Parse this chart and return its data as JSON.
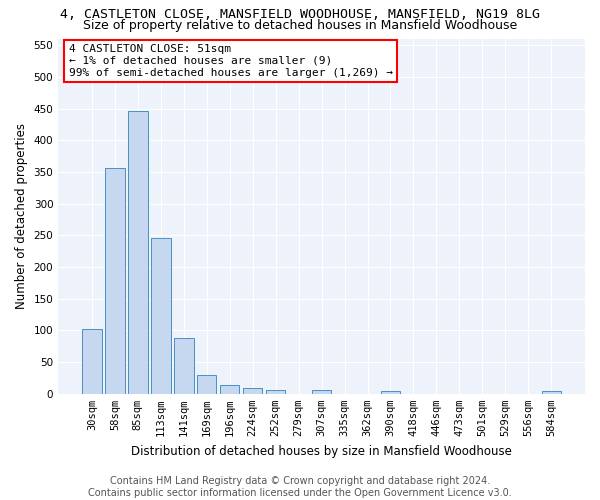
{
  "title": "4, CASTLETON CLOSE, MANSFIELD WOODHOUSE, MANSFIELD, NG19 8LG",
  "subtitle": "Size of property relative to detached houses in Mansfield Woodhouse",
  "xlabel": "Distribution of detached houses by size in Mansfield Woodhouse",
  "ylabel": "Number of detached properties",
  "footer_line1": "Contains HM Land Registry data © Crown copyright and database right 2024.",
  "footer_line2": "Contains public sector information licensed under the Open Government Licence v3.0.",
  "annotation_line1": "4 CASTLETON CLOSE: 51sqm",
  "annotation_line2": "← 1% of detached houses are smaller (9)",
  "annotation_line3": "99% of semi-detached houses are larger (1,269) →",
  "bar_color": "#c5d8f0",
  "bar_edge_color": "#4a90c4",
  "background_color": "#eef2fa",
  "grid_color": "#ffffff",
  "categories": [
    "30sqm",
    "58sqm",
    "85sqm",
    "113sqm",
    "141sqm",
    "169sqm",
    "196sqm",
    "224sqm",
    "252sqm",
    "279sqm",
    "307sqm",
    "335sqm",
    "362sqm",
    "390sqm",
    "418sqm",
    "446sqm",
    "473sqm",
    "501sqm",
    "529sqm",
    "556sqm",
    "584sqm"
  ],
  "values": [
    102,
    356,
    447,
    246,
    88,
    30,
    14,
    9,
    6,
    0,
    6,
    0,
    0,
    5,
    0,
    0,
    0,
    0,
    0,
    0,
    5
  ],
  "ylim": [
    0,
    560
  ],
  "yticks": [
    0,
    50,
    100,
    150,
    200,
    250,
    300,
    350,
    400,
    450,
    500,
    550
  ],
  "title_fontsize": 9.5,
  "subtitle_fontsize": 9,
  "axis_label_fontsize": 8.5,
  "tick_fontsize": 7.5,
  "annotation_fontsize": 8,
  "footer_fontsize": 7
}
